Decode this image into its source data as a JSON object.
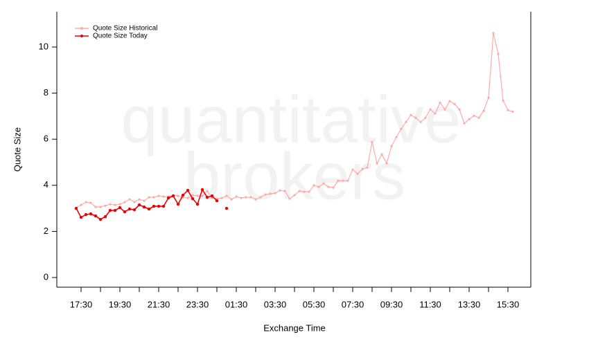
{
  "chart_data": {
    "type": "line",
    "watermark": [
      "quantitative",
      "brokers"
    ],
    "x_label": "Exchange Time",
    "y_label": "Quote Size",
    "categories": [
      null,
      "17:30",
      null,
      null,
      null,
      null,
      null,
      null,
      null,
      "19:30",
      null,
      null,
      null,
      null,
      null,
      null,
      null,
      "21:30",
      null,
      null,
      null,
      null,
      null,
      null,
      null,
      "23:30",
      null,
      null,
      null,
      null,
      null,
      null,
      null,
      "01:30",
      null,
      null,
      null,
      null,
      null,
      null,
      null,
      "03:30",
      null,
      null,
      null,
      null,
      null,
      null,
      null,
      "05:30",
      null,
      null,
      null,
      null,
      null,
      null,
      null,
      "07:30",
      null,
      null,
      null,
      null,
      null,
      null,
      null,
      "09:30",
      null,
      null,
      null,
      null,
      null,
      null,
      null,
      "11:30",
      null,
      null,
      null,
      null,
      null,
      null,
      null,
      "13:30",
      null,
      null,
      null,
      null,
      null,
      null,
      null,
      "15:30",
      null
    ],
    "series": [
      {
        "name": "Quote Size Historical",
        "color": "#ffaaaa",
        "values": [
          3.03,
          3.15,
          3.27,
          3.24,
          3.06,
          3.06,
          3.12,
          3.18,
          3.15,
          3.18,
          3.27,
          3.39,
          3.27,
          3.39,
          3.33,
          3.48,
          3.48,
          3.54,
          3.51,
          3.51,
          3.57,
          3.54,
          3.48,
          3.45,
          3.57,
          3.54,
          3.54,
          3.75,
          3.45,
          3.42,
          3.45,
          3.54,
          3.39,
          3.51,
          3.45,
          3.48,
          3.48,
          3.39,
          3.48,
          3.6,
          3.63,
          3.66,
          3.78,
          3.75,
          3.42,
          3.57,
          3.75,
          3.72,
          3.72,
          4.0,
          3.93,
          4.08,
          3.93,
          3.9,
          4.2,
          4.2,
          4.2,
          4.68,
          4.5,
          4.71,
          4.77,
          5.88,
          4.95,
          5.34,
          4.95,
          5.7,
          6.09,
          6.45,
          6.75,
          7.05,
          6.93,
          6.75,
          6.93,
          7.29,
          7.11,
          7.59,
          7.29,
          7.65,
          7.53,
          7.29,
          6.69,
          6.87,
          7.02,
          6.93,
          7.23,
          7.8,
          10.6,
          9.7,
          7.68,
          7.26,
          7.2
        ]
      },
      {
        "name": "Quote Size Today",
        "color": "#ee0000",
        "values": [
          3.0,
          2.61,
          2.73,
          2.76,
          2.67,
          2.52,
          2.64,
          2.91,
          2.91,
          3.03,
          2.85,
          2.97,
          2.94,
          3.15,
          3.06,
          2.97,
          3.09,
          3.09,
          3.09,
          3.45,
          3.54,
          3.18,
          3.57,
          3.78,
          3.42,
          3.18,
          3.81,
          3.48,
          3.54,
          3.33,
          null,
          3.0,
          null,
          null,
          null,
          null,
          null,
          null,
          null,
          null,
          null,
          null,
          null,
          null,
          null,
          null,
          null,
          null,
          null,
          null,
          null,
          null,
          null,
          null,
          null,
          null,
          null,
          null,
          null,
          null,
          null,
          null,
          null,
          null,
          null,
          null,
          null,
          null,
          null,
          null,
          null,
          null,
          null,
          null,
          null,
          null,
          null,
          null,
          null,
          null,
          null,
          null,
          null,
          null,
          null,
          null,
          null,
          null,
          null,
          null,
          null
        ]
      }
    ],
    "ylim": [
      -0.42,
      11.53
    ],
    "yticks": [
      0,
      2,
      4,
      6,
      8,
      10
    ]
  }
}
